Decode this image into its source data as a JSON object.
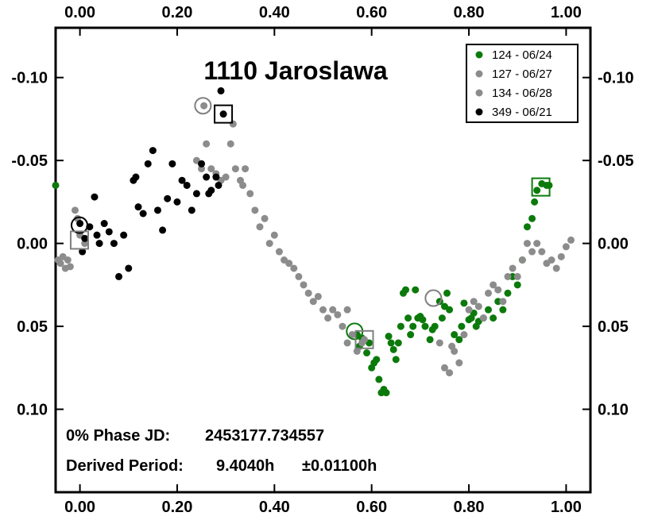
{
  "chart_data": {
    "type": "scatter",
    "title": "1110 Jaroslawa",
    "xlabel": "",
    "ylabel": "",
    "xlim": [
      -0.05,
      1.05
    ],
    "ylim": [
      0.15,
      -0.13
    ],
    "y_inverted": true,
    "x_ticks": [
      "0.00",
      "0.20",
      "0.40",
      "0.60",
      "0.80",
      "1.00"
    ],
    "x_tick_values": [
      0,
      0.2,
      0.4,
      0.6,
      0.8,
      1.0
    ],
    "y_ticks": [
      "-0.10",
      "-0.05",
      "0.00",
      "0.05",
      "0.10"
    ],
    "y_tick_values": [
      -0.1,
      -0.05,
      0.0,
      0.05,
      0.1
    ],
    "grid": false,
    "legend_position": "top-right",
    "annotations": {
      "phase_label": "0% Phase JD:",
      "phase_value": "2453177.734557",
      "period_label": "Derived Period:",
      "period_value": "9.4040h",
      "period_error": "±0.01100h"
    },
    "series": [
      {
        "name": "124 - 06/24",
        "color": "#0b7a0b",
        "points": [
          [
            -0.05,
            -0.035
          ],
          [
            0.57,
            0.055
          ],
          [
            0.575,
            0.062
          ],
          [
            0.58,
            0.057
          ],
          [
            0.59,
            0.066
          ],
          [
            0.595,
            0.06
          ],
          [
            0.6,
            0.075
          ],
          [
            0.605,
            0.072
          ],
          [
            0.61,
            0.07
          ],
          [
            0.615,
            0.082
          ],
          [
            0.62,
            0.09
          ],
          [
            0.625,
            0.088
          ],
          [
            0.63,
            0.09
          ],
          [
            0.635,
            0.056
          ],
          [
            0.64,
            0.06
          ],
          [
            0.645,
            0.064
          ],
          [
            0.65,
            0.07
          ],
          [
            0.655,
            0.06
          ],
          [
            0.66,
            0.05
          ],
          [
            0.665,
            0.03
          ],
          [
            0.67,
            0.028
          ],
          [
            0.675,
            0.045
          ],
          [
            0.68,
            0.055
          ],
          [
            0.685,
            0.05
          ],
          [
            0.69,
            0.028
          ],
          [
            0.695,
            0.045
          ],
          [
            0.7,
            0.044
          ],
          [
            0.705,
            0.046
          ],
          [
            0.71,
            0.05
          ],
          [
            0.72,
            0.058
          ],
          [
            0.725,
            0.052
          ],
          [
            0.73,
            0.05
          ],
          [
            0.74,
            0.035
          ],
          [
            0.745,
            0.045
          ],
          [
            0.75,
            0.038
          ],
          [
            0.755,
            0.03
          ],
          [
            0.76,
            0.04
          ],
          [
            0.77,
            0.055
          ],
          [
            0.78,
            0.058
          ],
          [
            0.785,
            0.05
          ],
          [
            0.79,
            0.036
          ],
          [
            0.8,
            0.046
          ],
          [
            0.805,
            0.045
          ],
          [
            0.81,
            0.042
          ],
          [
            0.815,
            0.05
          ],
          [
            0.82,
            0.047
          ],
          [
            0.83,
            0.045
          ],
          [
            0.84,
            0.04
          ],
          [
            0.85,
            0.045
          ],
          [
            0.86,
            0.035
          ],
          [
            0.87,
            0.04
          ],
          [
            0.88,
            0.03
          ],
          [
            0.89,
            0.02
          ],
          [
            0.9,
            0.025
          ],
          [
            0.91,
            0.01
          ],
          [
            0.92,
            -0.01
          ],
          [
            0.93,
            -0.015
          ],
          [
            0.935,
            -0.025
          ],
          [
            0.94,
            -0.032
          ],
          [
            0.95,
            -0.036
          ],
          [
            0.96,
            -0.035
          ],
          [
            0.965,
            -0.035
          ]
        ]
      },
      {
        "name": "127 - 06/27",
        "color": "#8c8c8c",
        "points": [
          [
            -0.045,
            0.01
          ],
          [
            -0.04,
            0.012
          ],
          [
            -0.035,
            0.008
          ],
          [
            -0.03,
            0.015
          ],
          [
            -0.025,
            0.01
          ],
          [
            -0.02,
            0.014
          ],
          [
            -0.01,
            -0.02
          ],
          [
            -0.005,
            -0.015
          ],
          [
            0.0,
            -0.005
          ],
          [
            0.01,
            0.0
          ],
          [
            0.24,
            -0.05
          ],
          [
            0.25,
            -0.045
          ],
          [
            0.255,
            -0.083
          ],
          [
            0.26,
            -0.06
          ],
          [
            0.27,
            -0.045
          ],
          [
            0.28,
            -0.042
          ],
          [
            0.29,
            -0.038
          ],
          [
            0.3,
            -0.04
          ],
          [
            0.31,
            -0.06
          ],
          [
            0.315,
            -0.072
          ],
          [
            0.32,
            -0.045
          ],
          [
            0.33,
            -0.038
          ],
          [
            0.335,
            -0.035
          ],
          [
            0.34,
            -0.045
          ],
          [
            0.35,
            -0.03
          ],
          [
            0.36,
            -0.02
          ],
          [
            0.37,
            -0.01
          ],
          [
            0.38,
            -0.015
          ],
          [
            0.39,
            0.0
          ],
          [
            0.4,
            -0.005
          ],
          [
            0.41,
            0.005
          ],
          [
            0.42,
            0.01
          ],
          [
            0.43,
            0.012
          ],
          [
            0.44,
            0.015
          ],
          [
            0.45,
            0.02
          ],
          [
            0.46,
            0.025
          ],
          [
            0.47,
            0.03
          ],
          [
            0.48,
            0.035
          ],
          [
            0.49,
            0.032
          ],
          [
            0.5,
            0.04
          ],
          [
            0.51,
            0.045
          ],
          [
            0.52,
            0.04
          ],
          [
            0.53,
            0.043
          ],
          [
            0.54,
            0.05
          ],
          [
            0.55,
            0.04
          ]
        ]
      },
      {
        "name": "134 - 06/28",
        "color": "#8c8c8c",
        "points": [
          [
            0.55,
            0.06
          ],
          [
            0.56,
            0.055
          ],
          [
            0.57,
            0.065
          ],
          [
            0.58,
            0.06
          ],
          [
            0.585,
            0.058
          ],
          [
            0.74,
            0.06
          ],
          [
            0.75,
            0.075
          ],
          [
            0.76,
            0.078
          ],
          [
            0.765,
            0.062
          ],
          [
            0.77,
            0.065
          ],
          [
            0.78,
            0.072
          ],
          [
            0.79,
            0.055
          ],
          [
            0.8,
            0.04
          ],
          [
            0.81,
            0.035
          ],
          [
            0.82,
            0.038
          ],
          [
            0.83,
            0.045
          ],
          [
            0.84,
            0.03
          ],
          [
            0.85,
            0.025
          ],
          [
            0.86,
            0.028
          ],
          [
            0.87,
            0.035
          ],
          [
            0.88,
            0.02
          ],
          [
            0.89,
            0.015
          ],
          [
            0.9,
            0.02
          ],
          [
            0.91,
            0.01
          ],
          [
            0.92,
            0.0
          ],
          [
            0.93,
            0.005
          ],
          [
            0.94,
            0.0
          ],
          [
            0.95,
            0.005
          ],
          [
            0.96,
            0.012
          ],
          [
            0.97,
            0.01
          ],
          [
            0.98,
            0.015
          ],
          [
            0.99,
            0.008
          ],
          [
            1.0,
            0.002
          ],
          [
            1.01,
            -0.002
          ]
        ]
      },
      {
        "name": "349 - 06/21",
        "color": "#000000",
        "points": [
          [
            0.0,
            -0.012
          ],
          [
            0.005,
            0.005
          ],
          [
            0.01,
            -0.003
          ],
          [
            0.02,
            -0.01
          ],
          [
            0.03,
            -0.028
          ],
          [
            0.035,
            -0.005
          ],
          [
            0.04,
            0.0
          ],
          [
            0.05,
            -0.012
          ],
          [
            0.06,
            -0.007
          ],
          [
            0.07,
            0.0
          ],
          [
            0.08,
            0.02
          ],
          [
            0.09,
            -0.005
          ],
          [
            0.1,
            0.015
          ],
          [
            0.11,
            -0.038
          ],
          [
            0.115,
            -0.04
          ],
          [
            0.12,
            -0.022
          ],
          [
            0.13,
            -0.018
          ],
          [
            0.14,
            -0.048
          ],
          [
            0.15,
            -0.056
          ],
          [
            0.16,
            -0.02
          ],
          [
            0.17,
            -0.008
          ],
          [
            0.18,
            -0.027
          ],
          [
            0.19,
            -0.048
          ],
          [
            0.2,
            -0.025
          ],
          [
            0.21,
            -0.038
          ],
          [
            0.22,
            -0.035
          ],
          [
            0.23,
            -0.02
          ],
          [
            0.24,
            -0.03
          ],
          [
            0.25,
            -0.048
          ],
          [
            0.26,
            -0.04
          ],
          [
            0.265,
            -0.03
          ],
          [
            0.27,
            -0.032
          ],
          [
            0.28,
            -0.04
          ],
          [
            0.285,
            -0.035
          ],
          [
            0.29,
            -0.092
          ],
          [
            0.295,
            -0.078
          ]
        ]
      }
    ],
    "markers": [
      {
        "shape": "circle",
        "color": "#808080",
        "x": 0.253,
        "y": -0.083
      },
      {
        "shape": "square",
        "color": "#000000",
        "x": 0.295,
        "y": -0.078
      },
      {
        "shape": "circle",
        "color": "#000000",
        "x": -0.001,
        "y": -0.011
      },
      {
        "shape": "square",
        "color": "#808080",
        "x": -0.001,
        "y": -0.002
      },
      {
        "shape": "circle",
        "color": "#0b7a0b",
        "x": 0.565,
        "y": 0.053
      },
      {
        "shape": "square",
        "color": "#808080",
        "x": 0.585,
        "y": 0.058
      },
      {
        "shape": "circle",
        "color": "#808080",
        "x": 0.727,
        "y": 0.033
      },
      {
        "shape": "square",
        "color": "#0b7a0b",
        "x": 0.948,
        "y": -0.034
      }
    ]
  }
}
